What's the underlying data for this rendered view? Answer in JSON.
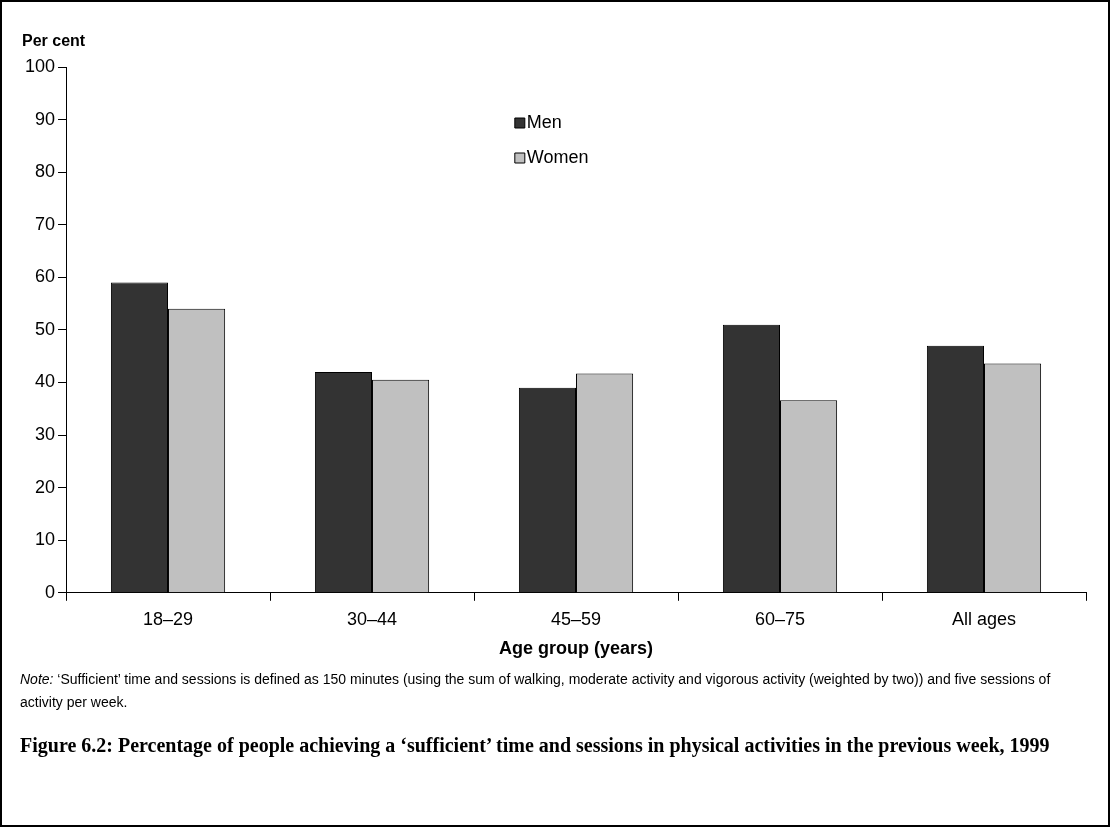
{
  "chart_data": {
    "type": "bar",
    "ylabel": "Per cent",
    "xlabel": "Age group (years)",
    "title": "Figure 6.2: Percentage of people achieving a ‘sufficient’ time and sessions in physical activities in the previous week, 1999",
    "categories": [
      "18–29",
      "30–44",
      "45–59",
      "60–75",
      "All ages"
    ],
    "series": [
      {
        "name": "Men",
        "color": "#333333",
        "values": [
          59,
          42,
          39,
          51,
          47
        ]
      },
      {
        "name": "Women",
        "color": "#c0c0c0",
        "values": [
          54,
          40.5,
          41.7,
          36.6,
          43.6
        ]
      }
    ],
    "ylim": [
      0,
      100
    ],
    "yticks": [
      0,
      10,
      20,
      30,
      40,
      50,
      60,
      70,
      80,
      90,
      100
    ],
    "legend": "top",
    "annotations": [
      "Note: ‘Sufficient’ time and sessions is defined as 150 minutes (using the sum of walking, moderate activity and vigorous activity (weighted by two)) and five sessions of activity per week."
    ]
  }
}
